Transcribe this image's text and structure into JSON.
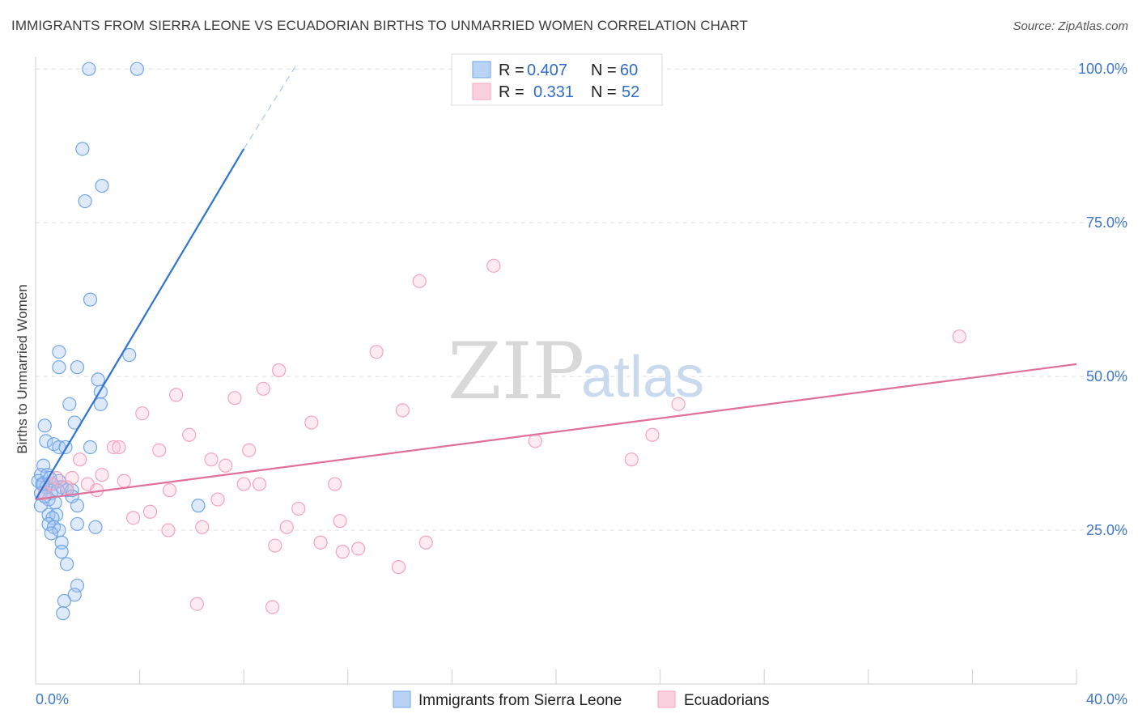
{
  "header": {
    "title": "IMMIGRANTS FROM SIERRA LEONE VS ECUADORIAN BIRTHS TO UNMARRIED WOMEN CORRELATION CHART",
    "source": "Source: ZipAtlas.com"
  },
  "watermark": {
    "zip": "ZIP",
    "atlas": "atlas"
  },
  "legend": {
    "r_label": "R =",
    "n_label": "N =",
    "series": [
      {
        "r": "0.407",
        "n": "60"
      },
      {
        "r": "0.331",
        "n": "52"
      }
    ]
  },
  "chart_data": {
    "type": "scatter",
    "xlabel": "",
    "ylabel": "Births to Unmarried Women",
    "xlim": [
      0,
      40
    ],
    "ylim": [
      0,
      102
    ],
    "x_tick_labels": [
      "0.0%",
      "40.0%"
    ],
    "y_ticks": [
      25,
      50,
      75,
      100
    ],
    "y_tick_labels": [
      "25.0%",
      "50.0%",
      "75.0%",
      "100.0%"
    ],
    "grid": true,
    "legend_position": "top-center",
    "series": [
      {
        "name": "Immigrants from Sierra Leone",
        "color": "#6fa6e8",
        "line_color": "#2f74d0",
        "trend": {
          "x0": 0,
          "y0": 30,
          "x1": 8,
          "y1": 87,
          "dash_x1": 10,
          "dash_y1": 100.5
        },
        "points": [
          [
            2.05,
            100
          ],
          [
            3.9,
            100
          ],
          [
            1.8,
            87
          ],
          [
            2.55,
            81
          ],
          [
            1.9,
            78.5
          ],
          [
            2.1,
            62.5
          ],
          [
            3.6,
            53.5
          ],
          [
            0.9,
            54
          ],
          [
            1.6,
            51.5
          ],
          [
            0.9,
            51.5
          ],
          [
            2.4,
            49.5
          ],
          [
            2.5,
            47.5
          ],
          [
            2.5,
            45.5
          ],
          [
            1.3,
            45.5
          ],
          [
            1.5,
            42.5
          ],
          [
            0.35,
            42
          ],
          [
            0.4,
            39.5
          ],
          [
            0.7,
            39
          ],
          [
            0.9,
            38.5
          ],
          [
            1.15,
            38.5
          ],
          [
            2.1,
            38.5
          ],
          [
            0.3,
            35.5
          ],
          [
            0.2,
            34
          ],
          [
            0.45,
            34
          ],
          [
            0.1,
            33
          ],
          [
            0.3,
            32.5
          ],
          [
            0.65,
            32.5
          ],
          [
            0.9,
            33
          ],
          [
            0.4,
            32
          ],
          [
            1.0,
            32
          ],
          [
            1.2,
            31.5
          ],
          [
            1.4,
            31.5
          ],
          [
            0.6,
            31
          ],
          [
            0.2,
            31
          ],
          [
            1.4,
            30.5
          ],
          [
            0.5,
            30
          ],
          [
            0.75,
            29.5
          ],
          [
            0.2,
            29
          ],
          [
            1.6,
            29
          ],
          [
            6.25,
            29
          ],
          [
            0.5,
            27.5
          ],
          [
            0.8,
            27.5
          ],
          [
            0.65,
            27
          ],
          [
            0.5,
            26
          ],
          [
            0.7,
            25.5
          ],
          [
            1.6,
            26
          ],
          [
            2.3,
            25.5
          ],
          [
            0.9,
            25
          ],
          [
            0.6,
            24.5
          ],
          [
            1.0,
            23
          ],
          [
            1.0,
            21.5
          ],
          [
            1.2,
            19.5
          ],
          [
            1.6,
            16
          ],
          [
            1.5,
            14.5
          ],
          [
            1.1,
            13.5
          ],
          [
            1.05,
            11.5
          ],
          [
            0.25,
            32.5
          ],
          [
            0.55,
            33.5
          ],
          [
            0.85,
            31.5
          ],
          [
            0.35,
            30.5
          ]
        ]
      },
      {
        "name": "Ecuadorians",
        "color": "#f4a3bd",
        "line_color": "#e0709a",
        "trend": {
          "x0": 0,
          "y0": 30,
          "x1": 40,
          "y1": 52
        },
        "points": [
          [
            17.6,
            68
          ],
          [
            14.75,
            65.5
          ],
          [
            35.5,
            56.5
          ],
          [
            13.1,
            54
          ],
          [
            9.35,
            51
          ],
          [
            8.75,
            48
          ],
          [
            5.4,
            47
          ],
          [
            7.65,
            46.5
          ],
          [
            24.7,
            45.5
          ],
          [
            14.1,
            44.5
          ],
          [
            4.1,
            44
          ],
          [
            10.6,
            42.5
          ],
          [
            23.7,
            40.5
          ],
          [
            5.9,
            40.5
          ],
          [
            19.2,
            39.5
          ],
          [
            3.0,
            38.5
          ],
          [
            3.2,
            38.5
          ],
          [
            8.2,
            38
          ],
          [
            4.75,
            38
          ],
          [
            6.75,
            36.5
          ],
          [
            22.9,
            36.5
          ],
          [
            1.7,
            36.5
          ],
          [
            7.3,
            35.5
          ],
          [
            2.55,
            34
          ],
          [
            1.4,
            33.5
          ],
          [
            0.8,
            33.5
          ],
          [
            3.4,
            33
          ],
          [
            8.0,
            32.5
          ],
          [
            8.6,
            32.5
          ],
          [
            11.5,
            32.5
          ],
          [
            2.0,
            32.5
          ],
          [
            2.35,
            31.5
          ],
          [
            5.15,
            31.5
          ],
          [
            0.35,
            31
          ],
          [
            7.0,
            30
          ],
          [
            10.1,
            28.5
          ],
          [
            4.4,
            28
          ],
          [
            3.75,
            27
          ],
          [
            11.7,
            26.5
          ],
          [
            6.4,
            25.5
          ],
          [
            9.65,
            25.5
          ],
          [
            5.1,
            25
          ],
          [
            10.95,
            23
          ],
          [
            15.0,
            23
          ],
          [
            9.2,
            22.5
          ],
          [
            12.4,
            22
          ],
          [
            11.8,
            21.5
          ],
          [
            13.95,
            19
          ],
          [
            6.2,
            13
          ],
          [
            9.1,
            12.5
          ],
          [
            1.2,
            32
          ],
          [
            0.6,
            32.5
          ]
        ]
      }
    ]
  }
}
